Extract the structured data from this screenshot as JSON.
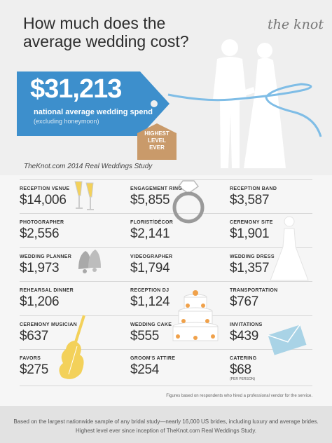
{
  "title_line1": "How much does the",
  "title_line2": "average wedding cost?",
  "brand": "the knot",
  "hero": {
    "amount": "$31,213",
    "subtitle": "national average wedding spend",
    "note": "(excluding honeymoon)",
    "badge": [
      "HIGHEST",
      "LEVEL",
      "EVER"
    ]
  },
  "study_source": "TheKnot.com 2014 Real Weddings Study",
  "items": [
    {
      "label": "RECEPTION VENUE",
      "value": "$14,006"
    },
    {
      "label": "ENGAGEMENT RING",
      "value": "$5,855"
    },
    {
      "label": "RECEPTION BAND",
      "value": "$3,587"
    },
    {
      "label": "PHOTOGRAPHER",
      "value": "$2,556"
    },
    {
      "label": "FLORIST/DÉCOR",
      "value": "$2,141"
    },
    {
      "label": "CEREMONY SITE",
      "value": "$1,901"
    },
    {
      "label": "WEDDING PLANNER",
      "value": "$1,973"
    },
    {
      "label": "VIDEOGRAPHER",
      "value": "$1,794"
    },
    {
      "label": "WEDDING DRESS",
      "value": "$1,357"
    },
    {
      "label": "REHEARSAL DINNER",
      "value": "$1,206"
    },
    {
      "label": "RECEPTION DJ",
      "value": "$1,124"
    },
    {
      "label": "TRANSPORTATION",
      "value": "$767"
    },
    {
      "label": "CEREMONY MUSICIAN",
      "value": "$637"
    },
    {
      "label": "WEDDING CAKE",
      "value": "$555"
    },
    {
      "label": "INVITATIONS",
      "value": "$439"
    },
    {
      "label": "FAVORS",
      "value": "$275"
    },
    {
      "label": "GROOM'S ATTIRE",
      "value": "$254"
    },
    {
      "label": "CATERING",
      "value": "$68",
      "note": "(PER PERSON)"
    }
  ],
  "footnote": "Figures based on respondents who hired a professional vendor for the service.",
  "footer_line1": "Based on the largest nationwide sample of any bridal study—nearly 16,000 US brides, including luxury and average brides.",
  "footer_line2": "Highest level ever since inception of TheKnot.com Real Weddings Study.",
  "colors": {
    "tag_blue": "#3d8fcc",
    "badge_tan": "#c99a6a",
    "champagne": "#f3d15a",
    "cake_orange": "#f0a14a",
    "envelope_blue": "#a9d3e6",
    "bells_gray": "#a9a9a9"
  },
  "icons": [
    "champagne-glasses-icon",
    "diamond-ring-icon",
    "wedding-bells-icon",
    "wedding-cake-icon",
    "violin-icon",
    "envelope-icon",
    "bride-dress-icon",
    "couple-silhouette-icon"
  ]
}
